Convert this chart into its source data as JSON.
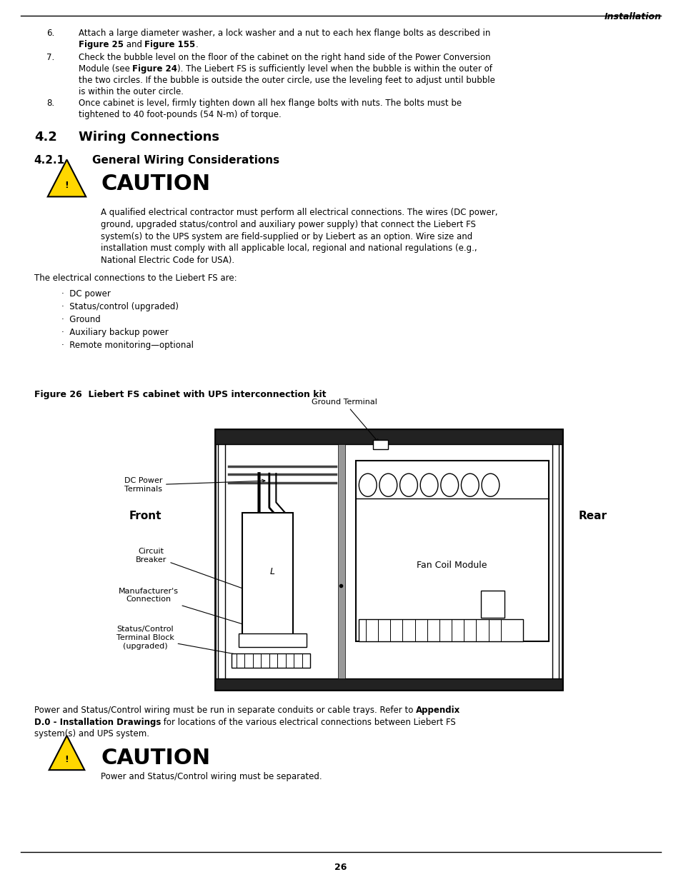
{
  "page_num": "26",
  "header_right": "Installation",
  "bg_color": "#ffffff",
  "text_color": "#000000",
  "fs_body": 8.5,
  "item6_line1": "Attach a large diameter washer, a lock washer and a nut to each hex flange bolts as described in",
  "item6_line2_parts": [
    [
      "Figure 25",
      true
    ],
    [
      " and ",
      false
    ],
    [
      "Figure 155",
      true
    ],
    [
      ".",
      false
    ]
  ],
  "item7_lines": [
    [
      [
        "Check the bubble level on the floor of the cabinet on the right hand side of the Power Conversion",
        false
      ]
    ],
    [
      [
        "Module (see ",
        false
      ],
      [
        "Figure 24",
        true
      ],
      [
        "). The Liebert FS is sufficiently level when the bubble is within the outer of",
        false
      ]
    ],
    [
      [
        "the two circles. If the bubble is outside the outer circle, use the leveling feet to adjust until bubble",
        false
      ]
    ],
    [
      [
        "is within the outer circle.",
        false
      ]
    ]
  ],
  "item8_line1": "Once cabinet is level, firmly tighten down all hex flange bolts with nuts. The bolts must be",
  "item8_line2": "tightened to 40 foot-pounds (54 N-m) of torque.",
  "sec42_num": "4.2",
  "sec42_title": "Wiring Connections",
  "sec421_num": "4.2.1",
  "sec421_title": "General Wiring Considerations",
  "caution_title": "CAUTION",
  "caution1_lines": [
    "A qualified electrical contractor must perform all electrical connections. The wires (DC power,",
    "ground, upgraded status/control and auxiliary power supply) that connect the Liebert FS",
    "system(s) to the UPS system are field-supplied or by Liebert as an option. Wire size and",
    "installation must comply with all applicable local, regional and national regulations (e.g.,",
    "National Electric Code for USA)."
  ],
  "para_elec": "The electrical connections to the Liebert FS are:",
  "bullets": [
    "·  DC power",
    "·  Status/control (upgraded)",
    "·  Ground",
    "·  Auxiliary backup power",
    "·  Remote monitoring—optional"
  ],
  "fig_caption": "Figure 26  Liebert FS cabinet with UPS interconnection kit",
  "para_power_lines": [
    [
      [
        "Power and Status/Control wiring must be run in separate conduits or cable trays. Refer to ",
        false
      ],
      [
        "Appendix",
        true
      ]
    ],
    [
      [
        "D.0 - Installation Drawings",
        true
      ],
      [
        " for locations of the various electrical connections between Liebert FS",
        false
      ]
    ],
    [
      [
        "system(s) and UPS system.",
        false
      ]
    ]
  ],
  "caution2_text": "Power and Status/Control wiring must be separated.",
  "triangle_color": "#FFD700",
  "dark_bar_color": "#222222",
  "divider_color": "#888888"
}
